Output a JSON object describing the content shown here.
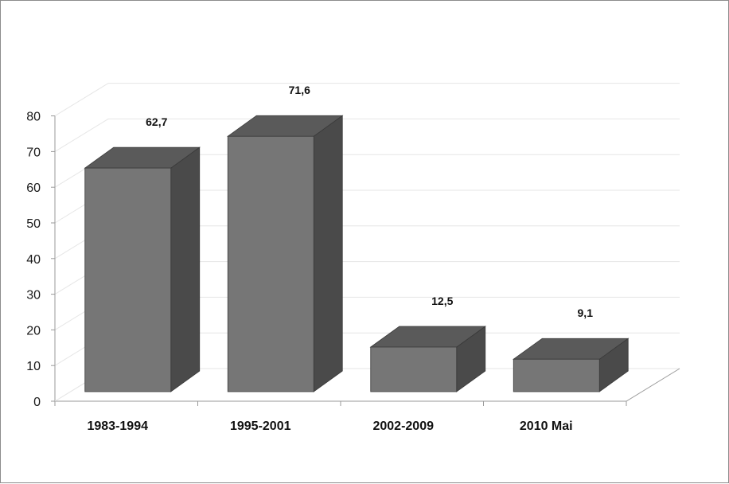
{
  "chart_data": {
    "type": "bar",
    "style": "3d-column",
    "categories": [
      "1983-1994",
      "1995-2001",
      "2002-2009",
      "2010 Mai"
    ],
    "values": [
      62.7,
      71.6,
      12.5,
      9.1
    ],
    "value_labels": [
      "62,7",
      "71,6",
      "12,5",
      "9,1"
    ],
    "y_ticks": [
      "0",
      "10",
      "20",
      "30",
      "40",
      "50",
      "60",
      "70",
      "80"
    ],
    "ylim": [
      0,
      80
    ],
    "grid": true,
    "legend": "none",
    "colors": {
      "bar_front": "#767676",
      "bar_top": "#5a5a5a",
      "bar_side": "#4a4a4a",
      "grid": "#e6e6e6",
      "axis": "#9a9a9a"
    }
  }
}
